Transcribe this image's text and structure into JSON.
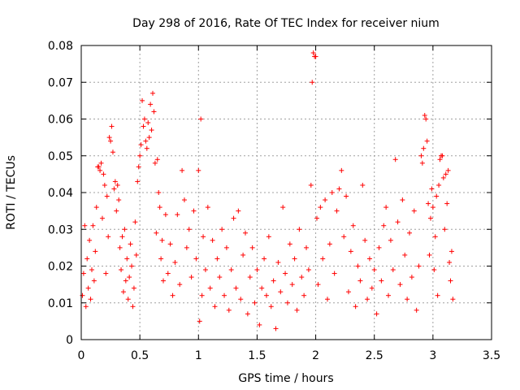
{
  "chart_data": {
    "type": "scatter",
    "title": "Day 298 of 2016, Rate Of TEC Index for receiver nium",
    "xlabel": "GPS time / hours",
    "ylabel": "ROTI / TECUs",
    "xlim": [
      0,
      3.5
    ],
    "ylim": [
      0,
      0.08
    ],
    "grid": true,
    "marker": "+",
    "marker_color": "#ff0000",
    "x_ticks": [
      {
        "value": 0,
        "label": "0"
      },
      {
        "value": 0.5,
        "label": "0.5"
      },
      {
        "value": 1,
        "label": "1"
      },
      {
        "value": 1.5,
        "label": "1.5"
      },
      {
        "value": 2,
        "label": "2"
      },
      {
        "value": 2.5,
        "label": "2.5"
      },
      {
        "value": 3,
        "label": "3"
      },
      {
        "value": 3.5,
        "label": "3.5"
      }
    ],
    "y_ticks": [
      {
        "value": 0,
        "label": "0"
      },
      {
        "value": 0.01,
        "label": "0.01"
      },
      {
        "value": 0.02,
        "label": "0.02"
      },
      {
        "value": 0.03,
        "label": "0.03"
      },
      {
        "value": 0.04,
        "label": "0.04"
      },
      {
        "value": 0.05,
        "label": "0.05"
      },
      {
        "value": 0.06,
        "label": "0.06"
      },
      {
        "value": 0.07,
        "label": "0.07"
      },
      {
        "value": 0.08,
        "label": "0.08"
      }
    ],
    "series": [
      {
        "name": "ROTI",
        "points": [
          [
            0.01,
            0.012
          ],
          [
            0.02,
            0.018
          ],
          [
            0.03,
            0.031
          ],
          [
            0.04,
            0.009
          ],
          [
            0.05,
            0.022
          ],
          [
            0.06,
            0.014
          ],
          [
            0.07,
            0.027
          ],
          [
            0.08,
            0.011
          ],
          [
            0.09,
            0.019
          ],
          [
            0.1,
            0.031
          ],
          [
            0.11,
            0.016
          ],
          [
            0.12,
            0.024
          ],
          [
            0.13,
            0.036
          ],
          [
            0.14,
            0.047
          ],
          [
            0.15,
            0.047
          ],
          [
            0.16,
            0.046
          ],
          [
            0.17,
            0.048
          ],
          [
            0.18,
            0.033
          ],
          [
            0.19,
            0.045
          ],
          [
            0.2,
            0.042
          ],
          [
            0.21,
            0.018
          ],
          [
            0.22,
            0.039
          ],
          [
            0.23,
            0.028
          ],
          [
            0.24,
            0.055
          ],
          [
            0.25,
            0.054
          ],
          [
            0.26,
            0.058
          ],
          [
            0.27,
            0.051
          ],
          [
            0.28,
            0.041
          ],
          [
            0.29,
            0.043
          ],
          [
            0.3,
            0.035
          ],
          [
            0.31,
            0.042
          ],
          [
            0.32,
            0.038
          ],
          [
            0.33,
            0.025
          ],
          [
            0.34,
            0.019
          ],
          [
            0.35,
            0.028
          ],
          [
            0.36,
            0.013
          ],
          [
            0.37,
            0.03
          ],
          [
            0.38,
            0.016
          ],
          [
            0.39,
            0.022
          ],
          [
            0.4,
            0.011
          ],
          [
            0.41,
            0.017
          ],
          [
            0.42,
            0.026
          ],
          [
            0.43,
            0.02
          ],
          [
            0.44,
            0.009
          ],
          [
            0.45,
            0.014
          ],
          [
            0.46,
            0.032
          ],
          [
            0.47,
            0.023
          ],
          [
            0.48,
            0.043
          ],
          [
            0.49,
            0.047
          ],
          [
            0.5,
            0.05
          ],
          [
            0.51,
            0.053
          ],
          [
            0.52,
            0.065
          ],
          [
            0.53,
            0.058
          ],
          [
            0.54,
            0.06
          ],
          [
            0.55,
            0.054
          ],
          [
            0.56,
            0.052
          ],
          [
            0.57,
            0.059
          ],
          [
            0.58,
            0.055
          ],
          [
            0.59,
            0.064
          ],
          [
            0.6,
            0.057
          ],
          [
            0.61,
            0.067
          ],
          [
            0.62,
            0.062
          ],
          [
            0.63,
            0.048
          ],
          [
            0.64,
            0.029
          ],
          [
            0.65,
            0.049
          ],
          [
            0.66,
            0.04
          ],
          [
            0.67,
            0.036
          ],
          [
            0.68,
            0.022
          ],
          [
            0.69,
            0.027
          ],
          [
            0.7,
            0.016
          ],
          [
            0.72,
            0.034
          ],
          [
            0.74,
            0.018
          ],
          [
            0.76,
            0.026
          ],
          [
            0.78,
            0.012
          ],
          [
            0.8,
            0.021
          ],
          [
            0.82,
            0.034
          ],
          [
            0.84,
            0.015
          ],
          [
            0.86,
            0.046
          ],
          [
            0.88,
            0.038
          ],
          [
            0.9,
            0.025
          ],
          [
            0.92,
            0.03
          ],
          [
            0.94,
            0.017
          ],
          [
            0.96,
            0.035
          ],
          [
            0.98,
            0.022
          ],
          [
            1.0,
            0.046
          ],
          [
            1.01,
            0.005
          ],
          [
            1.02,
            0.06
          ],
          [
            1.03,
            0.012
          ],
          [
            1.04,
            0.028
          ],
          [
            1.06,
            0.019
          ],
          [
            1.08,
            0.036
          ],
          [
            1.1,
            0.014
          ],
          [
            1.12,
            0.027
          ],
          [
            1.14,
            0.009
          ],
          [
            1.16,
            0.022
          ],
          [
            1.18,
            0.017
          ],
          [
            1.2,
            0.03
          ],
          [
            1.22,
            0.012
          ],
          [
            1.24,
            0.025
          ],
          [
            1.26,
            0.008
          ],
          [
            1.28,
            0.019
          ],
          [
            1.3,
            0.033
          ],
          [
            1.32,
            0.014
          ],
          [
            1.34,
            0.035
          ],
          [
            1.36,
            0.011
          ],
          [
            1.38,
            0.023
          ],
          [
            1.4,
            0.029
          ],
          [
            1.42,
            0.007
          ],
          [
            1.44,
            0.017
          ],
          [
            1.46,
            0.025
          ],
          [
            1.48,
            0.01
          ],
          [
            1.5,
            0.019
          ],
          [
            1.52,
            0.004
          ],
          [
            1.54,
            0.014
          ],
          [
            1.56,
            0.022
          ],
          [
            1.58,
            0.012
          ],
          [
            1.6,
            0.028
          ],
          [
            1.62,
            0.009
          ],
          [
            1.64,
            0.016
          ],
          [
            1.66,
            0.003
          ],
          [
            1.68,
            0.021
          ],
          [
            1.7,
            0.013
          ],
          [
            1.72,
            0.036
          ],
          [
            1.74,
            0.018
          ],
          [
            1.76,
            0.01
          ],
          [
            1.78,
            0.026
          ],
          [
            1.8,
            0.015
          ],
          [
            1.82,
            0.022
          ],
          [
            1.84,
            0.008
          ],
          [
            1.86,
            0.03
          ],
          [
            1.88,
            0.017
          ],
          [
            1.9,
            0.012
          ],
          [
            1.92,
            0.025
          ],
          [
            1.94,
            0.019
          ],
          [
            1.96,
            0.042
          ],
          [
            1.97,
            0.07
          ],
          [
            1.98,
            0.078
          ],
          [
            1.99,
            0.077
          ],
          [
            2.0,
            0.077
          ],
          [
            2.01,
            0.033
          ],
          [
            2.02,
            0.015
          ],
          [
            2.04,
            0.036
          ],
          [
            2.06,
            0.022
          ],
          [
            2.08,
            0.038
          ],
          [
            2.1,
            0.011
          ],
          [
            2.12,
            0.026
          ],
          [
            2.14,
            0.04
          ],
          [
            2.16,
            0.018
          ],
          [
            2.18,
            0.035
          ],
          [
            2.2,
            0.041
          ],
          [
            2.22,
            0.046
          ],
          [
            2.24,
            0.028
          ],
          [
            2.26,
            0.039
          ],
          [
            2.28,
            0.013
          ],
          [
            2.3,
            0.024
          ],
          [
            2.32,
            0.031
          ],
          [
            2.34,
            0.009
          ],
          [
            2.36,
            0.02
          ],
          [
            2.38,
            0.016
          ],
          [
            2.4,
            0.042
          ],
          [
            2.42,
            0.027
          ],
          [
            2.44,
            0.011
          ],
          [
            2.46,
            0.022
          ],
          [
            2.48,
            0.014
          ],
          [
            2.5,
            0.019
          ],
          [
            2.52,
            0.007
          ],
          [
            2.54,
            0.025
          ],
          [
            2.56,
            0.016
          ],
          [
            2.58,
            0.031
          ],
          [
            2.6,
            0.036
          ],
          [
            2.62,
            0.012
          ],
          [
            2.64,
            0.027
          ],
          [
            2.66,
            0.019
          ],
          [
            2.68,
            0.049
          ],
          [
            2.7,
            0.032
          ],
          [
            2.72,
            0.015
          ],
          [
            2.74,
            0.038
          ],
          [
            2.76,
            0.023
          ],
          [
            2.78,
            0.011
          ],
          [
            2.8,
            0.029
          ],
          [
            2.82,
            0.017
          ],
          [
            2.84,
            0.035
          ],
          [
            2.86,
            0.008
          ],
          [
            2.88,
            0.02
          ],
          [
            2.9,
            0.05
          ],
          [
            2.91,
            0.048
          ],
          [
            2.92,
            0.052
          ],
          [
            2.93,
            0.061
          ],
          [
            2.94,
            0.06
          ],
          [
            2.95,
            0.054
          ],
          [
            2.96,
            0.037
          ],
          [
            2.97,
            0.023
          ],
          [
            2.98,
            0.033
          ],
          [
            2.99,
            0.041
          ],
          [
            3.0,
            0.036
          ],
          [
            3.01,
            0.019
          ],
          [
            3.02,
            0.028
          ],
          [
            3.03,
            0.039
          ],
          [
            3.04,
            0.012
          ],
          [
            3.05,
            0.042
          ],
          [
            3.06,
            0.049
          ],
          [
            3.07,
            0.05
          ],
          [
            3.08,
            0.05
          ],
          [
            3.09,
            0.044
          ],
          [
            3.1,
            0.03
          ],
          [
            3.11,
            0.045
          ],
          [
            3.12,
            0.037
          ],
          [
            3.13,
            0.046
          ],
          [
            3.14,
            0.021
          ],
          [
            3.15,
            0.016
          ],
          [
            3.16,
            0.024
          ],
          [
            3.17,
            0.011
          ]
        ]
      }
    ]
  }
}
